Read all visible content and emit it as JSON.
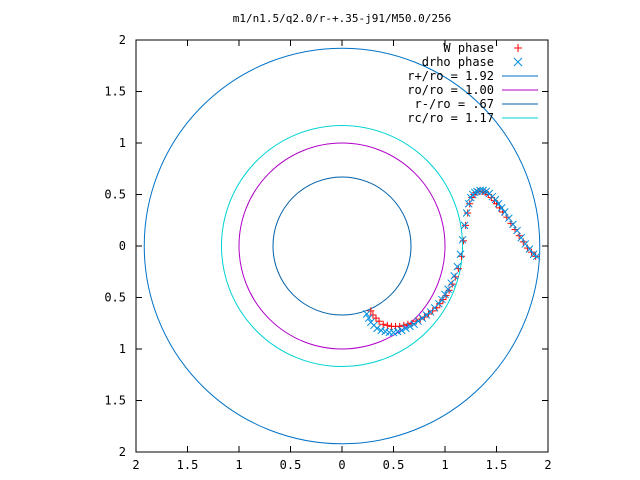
{
  "chart_data": {
    "type": "scatter",
    "title": "m1/n1.5/q2.0/r-+.35-j91/M50.0/256",
    "xlabel": "",
    "ylabel": "",
    "xlim": [
      -2,
      2
    ],
    "ylim": [
      -2,
      2
    ],
    "grid": false,
    "legend_position": "top-right",
    "x_tick_labels": [
      "2",
      "1.5",
      "1",
      "0.5",
      "0",
      "0.5",
      "1",
      "1.5",
      "2"
    ],
    "y_tick_labels": [
      "2",
      "1.5",
      "1",
      "0.5",
      "0",
      "0.5",
      "1",
      "1.5",
      "2"
    ],
    "tick_values": [
      -2,
      -1.5,
      -1,
      -0.5,
      0,
      0.5,
      1,
      1.5,
      2
    ],
    "circles": [
      {
        "name": "r+/ro = 1.92",
        "r": 1.92,
        "color": "#0072c6"
      },
      {
        "name": "ro/ro = 1.00",
        "r": 1.0,
        "color": "#b000c8"
      },
      {
        "name": "r-/ro = .67",
        "r": 0.67,
        "color": "#0060a8"
      },
      {
        "name": "rc/ro = 1.17",
        "r": 1.17,
        "color": "#00d2d2"
      }
    ],
    "series": [
      {
        "name": "W phase",
        "marker": "plus",
        "color": "#ff0000",
        "x": [
          0.28,
          0.3,
          0.33,
          0.36,
          0.4,
          0.44,
          0.48,
          0.52,
          0.56,
          0.6,
          0.64,
          0.68,
          0.72,
          0.76,
          0.8,
          0.84,
          0.88,
          0.92,
          0.95,
          0.98,
          1.01,
          1.04,
          1.07,
          1.1,
          1.13,
          1.16,
          1.18,
          1.2,
          1.22,
          1.24,
          1.26,
          1.28,
          1.3,
          1.33,
          1.36,
          1.39,
          1.42,
          1.45,
          1.48,
          1.5,
          1.53,
          1.56,
          1.6,
          1.64,
          1.68,
          1.72,
          1.76,
          1.8,
          1.84,
          1.88
        ],
        "y": [
          -0.63,
          -0.67,
          -0.7,
          -0.73,
          -0.76,
          -0.77,
          -0.78,
          -0.78,
          -0.78,
          -0.77,
          -0.76,
          -0.75,
          -0.73,
          -0.71,
          -0.69,
          -0.66,
          -0.63,
          -0.6,
          -0.56,
          -0.52,
          -0.48,
          -0.43,
          -0.37,
          -0.3,
          -0.22,
          -0.1,
          0.05,
          0.2,
          0.32,
          0.41,
          0.47,
          0.5,
          0.52,
          0.53,
          0.53,
          0.52,
          0.5,
          0.47,
          0.44,
          0.41,
          0.37,
          0.33,
          0.28,
          0.22,
          0.16,
          0.1,
          0.04,
          -0.02,
          -0.06,
          -0.1
        ]
      },
      {
        "name": "drho phase",
        "marker": "cross",
        "color": "#0090e0",
        "x": [
          0.24,
          0.26,
          0.28,
          0.31,
          0.34,
          0.38,
          0.42,
          0.46,
          0.5,
          0.54,
          0.58,
          0.62,
          0.66,
          0.7,
          0.74,
          0.78,
          0.82,
          0.86,
          0.9,
          0.94,
          0.97,
          1.0,
          1.03,
          1.06,
          1.09,
          1.12,
          1.15,
          1.17,
          1.19,
          1.21,
          1.23,
          1.25,
          1.27,
          1.29,
          1.31,
          1.34,
          1.37,
          1.4,
          1.43,
          1.46,
          1.49,
          1.52,
          1.55,
          1.58,
          1.62,
          1.66,
          1.7,
          1.74,
          1.78,
          1.82,
          1.86,
          1.89
        ],
        "y": [
          -0.66,
          -0.7,
          -0.74,
          -0.77,
          -0.8,
          -0.82,
          -0.83,
          -0.84,
          -0.84,
          -0.83,
          -0.82,
          -0.8,
          -0.78,
          -0.76,
          -0.73,
          -0.7,
          -0.67,
          -0.64,
          -0.6,
          -0.56,
          -0.52,
          -0.47,
          -0.42,
          -0.36,
          -0.29,
          -0.2,
          -0.08,
          0.06,
          0.2,
          0.32,
          0.41,
          0.47,
          0.5,
          0.52,
          0.53,
          0.54,
          0.54,
          0.53,
          0.51,
          0.48,
          0.45,
          0.41,
          0.37,
          0.33,
          0.27,
          0.21,
          0.15,
          0.08,
          0.02,
          -0.03,
          -0.08,
          -0.1
        ]
      }
    ]
  }
}
